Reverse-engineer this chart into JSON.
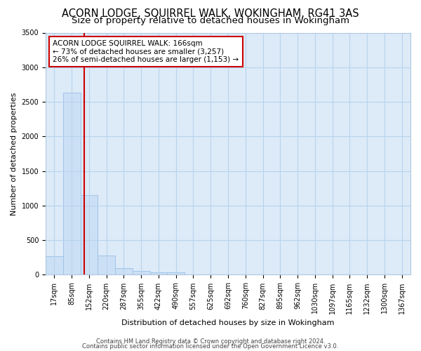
{
  "title": "ACORN LODGE, SQUIRREL WALK, WOKINGHAM, RG41 3AS",
  "subtitle": "Size of property relative to detached houses in Wokingham",
  "xlabel": "Distribution of detached houses by size in Wokingham",
  "ylabel": "Number of detached properties",
  "bar_categories": [
    "17sqm",
    "85sqm",
    "152sqm",
    "220sqm",
    "287sqm",
    "355sqm",
    "422sqm",
    "490sqm",
    "557sqm",
    "625sqm",
    "692sqm",
    "760sqm",
    "827sqm",
    "895sqm",
    "962sqm",
    "1030sqm",
    "1097sqm",
    "1165sqm",
    "1232sqm",
    "1300sqm",
    "1367sqm"
  ],
  "bar_values": [
    270,
    2630,
    1155,
    275,
    95,
    55,
    30,
    30,
    0,
    0,
    0,
    0,
    0,
    0,
    0,
    0,
    0,
    0,
    0,
    0,
    0
  ],
  "bar_color": "#cce0f5",
  "bar_edge_color": "#a0c4e8",
  "grid_color": "#b8d4ee",
  "annotation_text": "ACORN LODGE SQUIRREL WALK: 166sqm\n← 73% of detached houses are smaller (3,257)\n26% of semi-detached houses are larger (1,153) →",
  "annotation_box_color": "#ffffff",
  "annotation_box_edge": "#cc0000",
  "property_line_color": "#cc0000",
  "ylim": [
    0,
    3500
  ],
  "yticks": [
    0,
    500,
    1000,
    1500,
    2000,
    2500,
    3000,
    3500
  ],
  "footer1": "Contains HM Land Registry data © Crown copyright and database right 2024.",
  "footer2": "Contains public sector information licensed under the Open Government Licence v3.0.",
  "bg_color": "#ffffff",
  "plot_bg_color": "#ddeaf8",
  "title_fontsize": 10.5,
  "subtitle_fontsize": 9.5,
  "axis_fontsize": 8,
  "tick_fontsize": 7,
  "annotation_fontsize": 7.5,
  "footer_fontsize": 6
}
